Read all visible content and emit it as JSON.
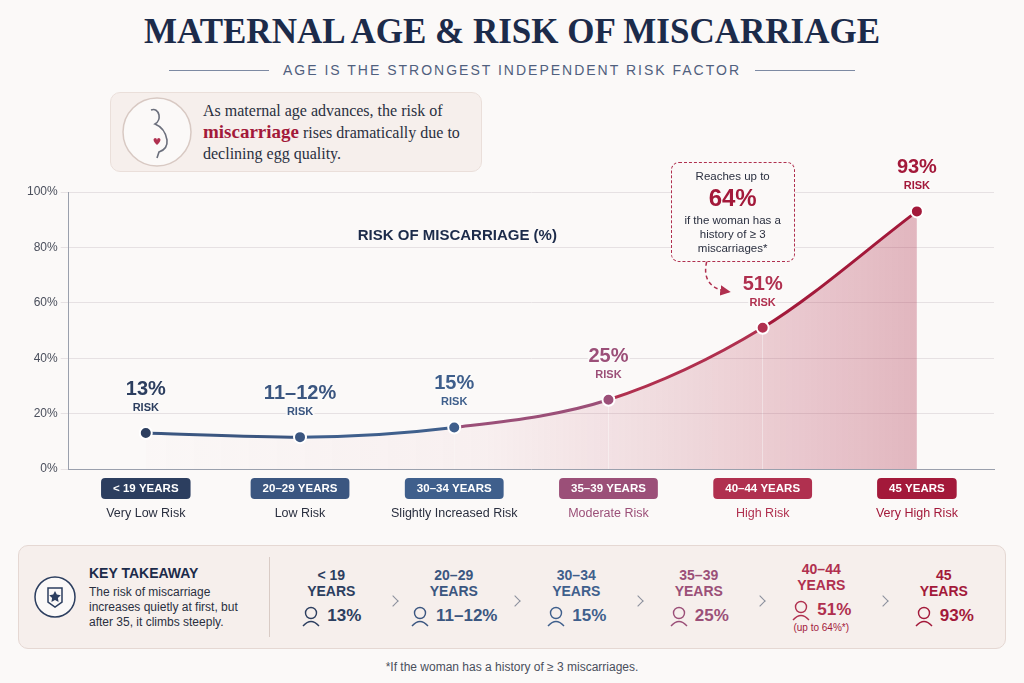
{
  "title": "MATERNAL AGE & RISK OF MISCARRIAGE",
  "subtitle": "AGE IS THE STRONGEST INDEPENDENT RISK FACTOR",
  "callout": {
    "before": "As maternal age advances, the risk of",
    "highlight": "miscarriage",
    "after": "rises dramatically due to declining egg quality."
  },
  "chart_data": {
    "type": "line",
    "title": "RISK OF MISCARRIAGE (%)",
    "categories": [
      "< 19 YEARS",
      "20–29 YEARS",
      "30–34 YEARS",
      "35–39 YEARS",
      "40–44 YEARS",
      "45 YEARS"
    ],
    "values": [
      13,
      11.5,
      15,
      25,
      51,
      93
    ],
    "value_labels": [
      "13%",
      "11–12%",
      "15%",
      "25%",
      "51%",
      "93%"
    ],
    "value_label_caption": "RISK",
    "risk_levels": [
      "Very Low Risk",
      "Low Risk",
      "Slightly Increased Risk",
      "Moderate Risk",
      "High Risk",
      "Very High Risk"
    ],
    "colors": [
      "#2c3e5f",
      "#3b5680",
      "#3f5f8c",
      "#9b4f78",
      "#b0304f",
      "#a3193a"
    ],
    "marker": "circle",
    "data_labels": true,
    "ylim": [
      0,
      100
    ],
    "yticks": [
      {
        "value": 0,
        "label": "0%"
      },
      {
        "value": 20,
        "label": "20%"
      },
      {
        "value": 40,
        "label": "40%"
      },
      {
        "value": 60,
        "label": "60%"
      },
      {
        "value": 80,
        "label": "80%"
      },
      {
        "value": 100,
        "label": "100%"
      }
    ],
    "grid": true,
    "annotation": {
      "category": "40–44 YEARS",
      "text_before": "Reaches up to",
      "value": 64,
      "label": "64%",
      "text_after": "if the woman has a history of ≥ 3 miscarriages*"
    }
  },
  "key_takeaway": {
    "title": "KEY TAKEAWAY",
    "text": "The risk of miscarriage increases quietly at first, but after 35, it climbs steeply.",
    "note": {
      "category": "40–44 YEARS",
      "text": "(up to 64%*)"
    }
  },
  "footnote": "*If the woman has a history of ≥ 3 miscarriages."
}
